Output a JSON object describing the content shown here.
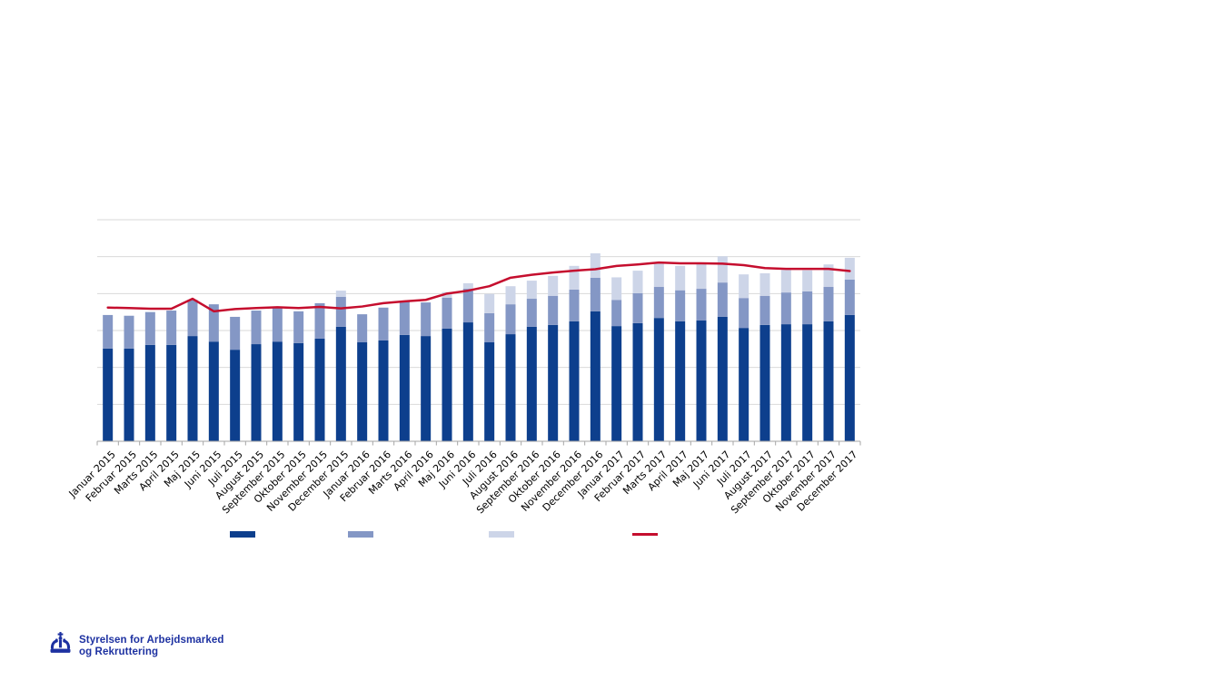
{
  "page": {
    "background": "#ffffff"
  },
  "logo": {
    "org_name": "Styrelsen for Arbejdsmarked og Rekruttering",
    "line1": "Styrelsen for Arbejdsmarked",
    "line2": "og Rekruttering",
    "color": "#1d31a1"
  },
  "chart_data": {
    "type": "bar",
    "stacked": true,
    "title": "",
    "xlabel": "",
    "ylabel": "",
    "y_axis_labels_visible": false,
    "ylim": [
      0,
      6
    ],
    "gridline_count": 6,
    "grid": true,
    "gridline_color": "#d9d9d9",
    "axis_color": "#a6a6a6",
    "tick_label_color": "#000000",
    "x_tick_rotation": -45,
    "categories": [
      "Januar 2015",
      "Februar 2015",
      "Marts 2015",
      "April 2015",
      "Maj 2015",
      "Juni 2015",
      "Juli 2015",
      "August 2015",
      "September 2015",
      "Oktober 2015",
      "November 2015",
      "December 2015",
      "Januar 2016",
      "Februar 2016",
      "Marts 2016",
      "April 2016",
      "Maj 2016",
      "Juni 2016",
      "Juli 2016",
      "August 2016",
      "September 2016",
      "Oktober 2016",
      "November 2016",
      "December 2016",
      "Januar 2017",
      "Februar 2017",
      "Marts 2017",
      "April 2017",
      "Maj 2017",
      "Juni 2017",
      "Juli 2017",
      "August 2017",
      "September 2017",
      "Oktober 2017",
      "November 2017",
      "December 2017"
    ],
    "series": [
      {
        "name": "dark-blue-segment",
        "color": "#0d3f8d",
        "values": [
          2.51,
          2.51,
          2.61,
          2.61,
          2.85,
          2.7,
          2.48,
          2.63,
          2.7,
          2.66,
          2.78,
          3.1,
          2.68,
          2.73,
          2.88,
          2.85,
          3.05,
          3.22,
          2.68,
          2.9,
          3.1,
          3.15,
          3.25,
          3.52,
          3.12,
          3.2,
          3.34,
          3.25,
          3.27,
          3.37,
          3.07,
          3.15,
          3.17,
          3.17,
          3.25,
          3.42
        ]
      },
      {
        "name": "medium-blue-segment",
        "color": "#8497c5",
        "values": [
          0.91,
          0.89,
          0.89,
          0.93,
          0.98,
          1.01,
          0.89,
          0.91,
          0.93,
          0.86,
          0.96,
          0.81,
          0.76,
          0.89,
          0.91,
          0.91,
          0.84,
          0.91,
          0.79,
          0.81,
          0.76,
          0.79,
          0.86,
          0.91,
          0.71,
          0.81,
          0.84,
          0.84,
          0.86,
          0.93,
          0.81,
          0.79,
          0.86,
          0.89,
          0.93,
          0.96
        ]
      },
      {
        "name": "light-blue-segment",
        "color": "#cdd5e8",
        "values": [
          0,
          0,
          0,
          0,
          0,
          0,
          0,
          0,
          0,
          0,
          0,
          0.17,
          0,
          0,
          0,
          0,
          0.15,
          0.15,
          0.52,
          0.49,
          0.49,
          0.54,
          0.64,
          0.66,
          0.61,
          0.61,
          0.66,
          0.66,
          0.71,
          0.71,
          0.64,
          0.61,
          0.61,
          0.57,
          0.61,
          0.59
        ]
      }
    ],
    "line_series": {
      "name": "red-trend-line",
      "color": "#c50e2e",
      "values": [
        3.62,
        3.61,
        3.59,
        3.59,
        3.86,
        3.52,
        3.58,
        3.61,
        3.63,
        3.61,
        3.64,
        3.6,
        3.65,
        3.74,
        3.79,
        3.83,
        4.0,
        4.08,
        4.2,
        4.43,
        4.51,
        4.57,
        4.62,
        4.66,
        4.75,
        4.79,
        4.84,
        4.82,
        4.82,
        4.81,
        4.77,
        4.69,
        4.67,
        4.67,
        4.67,
        4.61
      ]
    },
    "legend": {
      "position": "bottom",
      "labels_visible": false,
      "items": [
        {
          "name": "dark-blue-bars",
          "swatch": "rect",
          "color": "#0d3f8d"
        },
        {
          "name": "medium-blue-bars",
          "swatch": "rect",
          "color": "#8497c5"
        },
        {
          "name": "light-blue-bars",
          "swatch": "rect",
          "color": "#cdd5e8"
        },
        {
          "name": "red-trend-line",
          "swatch": "line",
          "color": "#c50e2e"
        }
      ]
    }
  }
}
